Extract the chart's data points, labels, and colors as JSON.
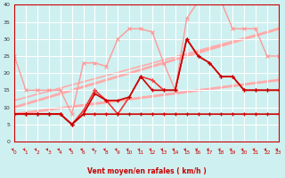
{
  "xlabel": "Vent moyen/en rafales ( km/h )",
  "xlim": [
    0,
    23
  ],
  "ylim": [
    0,
    40
  ],
  "yticks": [
    0,
    5,
    10,
    15,
    20,
    25,
    30,
    35,
    40
  ],
  "xticks": [
    0,
    1,
    2,
    3,
    4,
    5,
    6,
    7,
    8,
    9,
    10,
    11,
    12,
    13,
    14,
    15,
    16,
    17,
    18,
    19,
    20,
    21,
    22,
    23
  ],
  "background_color": "#cff0f0",
  "grid_color": "#aadddd",
  "trend1_x": [
    0,
    23
  ],
  "trend1_y": [
    8,
    18
  ],
  "trend1_color": "#ffaaaa",
  "trend1_lw": 2.0,
  "trend2_x": [
    0,
    23
  ],
  "trend2_y": [
    10,
    33
  ],
  "trend2_color": "#ffaaaa",
  "trend2_lw": 2.0,
  "trend3_x": [
    0,
    23
  ],
  "trend3_y": [
    12,
    33
  ],
  "trend3_color": "#ffaaaa",
  "trend3_lw": 1.2,
  "gust_x": [
    0,
    1,
    2,
    3,
    4,
    5,
    6,
    7,
    8,
    9,
    10,
    11,
    12,
    13,
    14,
    15,
    16,
    17,
    18,
    19,
    20,
    21,
    22,
    23
  ],
  "gust_y": [
    25,
    15,
    15,
    15,
    15,
    8,
    23,
    23,
    22,
    30,
    33,
    33,
    32,
    23,
    15,
    36,
    41,
    41,
    41,
    33,
    33,
    33,
    25,
    25
  ],
  "gust_color": "#ff9999",
  "gust_lw": 1.0,
  "mean1_x": [
    0,
    1,
    2,
    3,
    4,
    5,
    6,
    7,
    8,
    9,
    10,
    11,
    12,
    13,
    14,
    15,
    16,
    17,
    18,
    19,
    20,
    21,
    22,
    23
  ],
  "mean1_y": [
    8,
    8,
    8,
    8,
    8,
    5,
    8,
    8,
    8,
    8,
    8,
    8,
    8,
    8,
    8,
    8,
    8,
    8,
    8,
    8,
    8,
    8,
    8,
    8
  ],
  "mean1_color": "#cc0000",
  "mean1_lw": 1.2,
  "mean2_x": [
    0,
    1,
    2,
    3,
    4,
    5,
    6,
    7,
    8,
    9,
    10,
    11,
    12,
    13,
    14,
    15,
    16,
    17,
    18,
    19,
    20,
    21,
    22,
    23
  ],
  "mean2_y": [
    8,
    8,
    8,
    8,
    8,
    5,
    8,
    14,
    12,
    12,
    13,
    19,
    15,
    15,
    15,
    30,
    25,
    23,
    19,
    19,
    15,
    15,
    15,
    15
  ],
  "mean2_color": "#cc0000",
  "mean2_lw": 1.2,
  "mean3_x": [
    0,
    1,
    2,
    3,
    4,
    5,
    6,
    7,
    8,
    9,
    10,
    11,
    12,
    13,
    14,
    15,
    16,
    17,
    18,
    19,
    20,
    21,
    22,
    23
  ],
  "mean3_y": [
    8,
    8,
    8,
    8,
    8,
    5,
    9,
    15,
    12,
    8,
    13,
    19,
    18,
    15,
    15,
    30,
    25,
    23,
    19,
    19,
    15,
    15,
    15,
    15
  ],
  "mean3_color": "#cc0000",
  "mean3_lw": 1.0,
  "mean4_x": [
    0,
    1,
    2,
    3,
    4,
    5,
    6,
    7,
    8,
    9,
    10,
    11,
    12,
    13,
    14,
    15,
    16,
    17,
    18,
    19,
    20,
    21,
    22,
    23
  ],
  "mean4_y": [
    8,
    8,
    8,
    8,
    8,
    5,
    9,
    15,
    12,
    8,
    13,
    19,
    18,
    15,
    15,
    30,
    25,
    23,
    19,
    19,
    15,
    15,
    15,
    15
  ],
  "mean4_color": "#ff4444",
  "mean4_lw": 0.8,
  "arrow_color": "#cc0000",
  "axis_color": "#cc0000",
  "tick_color": "#cc0000",
  "label_color": "#cc0000"
}
